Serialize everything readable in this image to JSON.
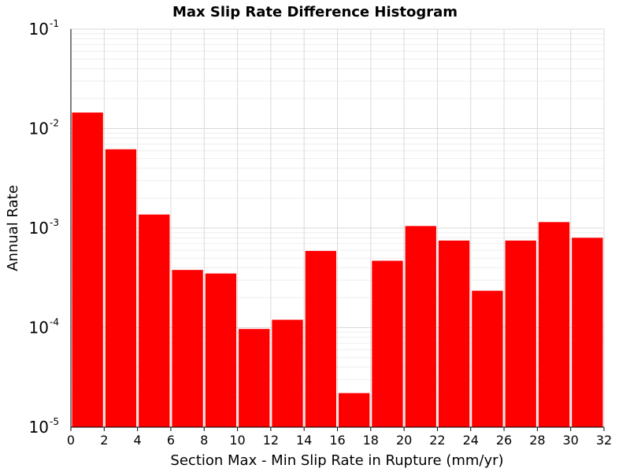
{
  "chart_data": {
    "type": "bar",
    "title": "Max Slip Rate Difference Histogram",
    "xlabel": "Section Max - Min Slip Rate in Rupture (mm/yr)",
    "ylabel": "Annual Rate",
    "xlim": [
      0,
      32
    ],
    "ylim": [
      1e-05,
      0.1
    ],
    "y_scale": "log",
    "x_ticks": [
      "0",
      "2",
      "4",
      "6",
      "8",
      "10",
      "12",
      "14",
      "16",
      "18",
      "20",
      "22",
      "24",
      "26",
      "28",
      "30",
      "32"
    ],
    "y_ticks": [
      {
        "base": "10",
        "exp": "-5",
        "value": 1e-05
      },
      {
        "base": "10",
        "exp": "-4",
        "value": 0.0001
      },
      {
        "base": "10",
        "exp": "-3",
        "value": 0.001
      },
      {
        "base": "10",
        "exp": "-2",
        "value": 0.01
      },
      {
        "base": "10",
        "exp": "-1",
        "value": 0.1
      }
    ],
    "grid": true,
    "bar_color": "#ff0000",
    "bars": [
      {
        "x0": 0,
        "x1": 2,
        "value": 0.0145
      },
      {
        "x0": 2,
        "x1": 4,
        "value": 0.0062
      },
      {
        "x0": 4,
        "x1": 6,
        "value": 0.00137
      },
      {
        "x0": 6,
        "x1": 8,
        "value": 0.00038
      },
      {
        "x0": 8,
        "x1": 10,
        "value": 0.00035
      },
      {
        "x0": 10,
        "x1": 12,
        "value": 9.7e-05
      },
      {
        "x0": 12,
        "x1": 14,
        "value": 0.00012
      },
      {
        "x0": 14,
        "x1": 16,
        "value": 0.00059
      },
      {
        "x0": 16,
        "x1": 18,
        "value": 2.2e-05
      },
      {
        "x0": 18,
        "x1": 20,
        "value": 0.00047
      },
      {
        "x0": 20,
        "x1": 22,
        "value": 0.00105
      },
      {
        "x0": 22,
        "x1": 24,
        "value": 0.00075
      },
      {
        "x0": 24,
        "x1": 26,
        "value": 0.000235
      },
      {
        "x0": 26,
        "x1": 28,
        "value": 0.00075
      },
      {
        "x0": 28,
        "x1": 30,
        "value": 0.00115
      },
      {
        "x0": 30,
        "x1": 32,
        "value": 0.0008
      }
    ]
  }
}
